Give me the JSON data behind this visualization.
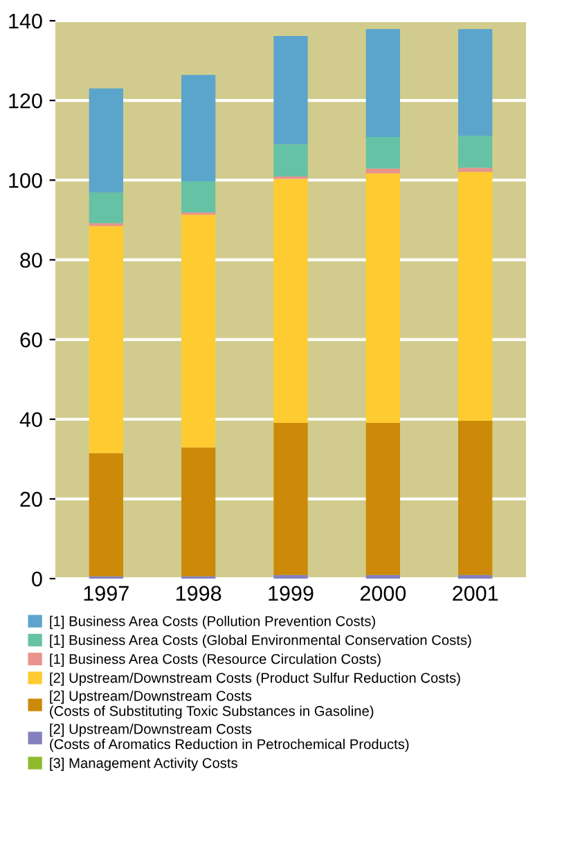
{
  "chart_data": {
    "type": "bar",
    "stacked": true,
    "categories": [
      "1997",
      "1998",
      "1999",
      "2000",
      "2001"
    ],
    "series": [
      {
        "name": "[3] Management Activity Costs",
        "color": "#8fba2e",
        "values": [
          0,
          0,
          0,
          0,
          0
        ]
      },
      {
        "name": "[2] Upstream/Downstream Costs\n(Costs of Aromatics Reduction in Petrochemical Products)",
        "color": "#8480bd",
        "values": [
          0.6,
          0.6,
          0.9,
          0.9,
          0.9
        ]
      },
      {
        "name": "[2] Upstream/Downstream Costs\n(Costs of Substituting Toxic Substances in Gasoline)",
        "color": "#cc8a08",
        "values": [
          30.9,
          32.3,
          38.2,
          38.2,
          38.7
        ]
      },
      {
        "name": "[2] Upstream/Downstream Costs (Product Sulfur Reduction Costs)",
        "color": "#fecb30",
        "values": [
          57.0,
          58.4,
          61.2,
          62.6,
          62.5
        ]
      },
      {
        "name": "[1] Business Area Costs (Resource Circulation Costs)",
        "color": "#e8938c",
        "values": [
          0.7,
          0.6,
          0.6,
          1.2,
          1.0
        ]
      },
      {
        "name": "[1] Business Area Costs (Global Environmental Conservation Costs)",
        "color": "#66c2a5",
        "values": [
          7.7,
          7.8,
          8.1,
          7.9,
          8.0
        ]
      },
      {
        "name": "[1] Business Area Costs (Pollution Prevention Costs)",
        "color": "#5ba5cc",
        "values": [
          26.1,
          26.7,
          27.2,
          27.1,
          26.8
        ]
      }
    ],
    "ylim": [
      0,
      140
    ],
    "yticks": [
      0,
      20,
      40,
      60,
      80,
      100,
      120,
      140
    ],
    "grid": "y",
    "legend": "bottom"
  }
}
